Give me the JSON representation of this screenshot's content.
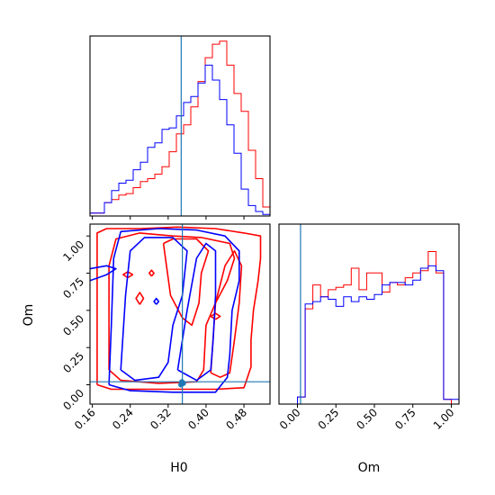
{
  "chart_data": {
    "type": "corner",
    "parameters": [
      "H0",
      "Om"
    ],
    "truths": {
      "H0": 0.35,
      "Om": 0.02
    },
    "colors": {
      "sample_a": "#ff0000",
      "sample_b": "#0000ff",
      "truth": "#1f77b4"
    },
    "panels": [
      {
        "id": "H0-marginal",
        "type": "histogram",
        "x_range": [
          0.16,
          0.535
        ],
        "bin_edges": [
          0.16,
          0.175,
          0.19,
          0.205,
          0.22,
          0.235,
          0.25,
          0.265,
          0.28,
          0.295,
          0.31,
          0.325,
          0.34,
          0.355,
          0.37,
          0.385,
          0.4,
          0.415,
          0.43,
          0.445,
          0.46,
          0.475,
          0.49,
          0.505,
          0.52,
          0.535
        ],
        "series": [
          {
            "name": "",
            "color": "#ff0000",
            "counts": [
              2,
              2,
              9,
              11,
              14,
              15,
              19,
              23,
              25,
              28,
              33,
              43,
              55,
              61,
              73,
              90,
              106,
              115,
              117,
              101,
              82,
              70,
              44,
              25,
              6
            ]
          },
          {
            "name": "",
            "color": "#0000ff",
            "counts": [
              2,
              2,
              9,
              17,
              22,
              24,
              31,
              36,
              46,
              49,
              58,
              59,
              67,
              76,
              80,
              89,
              101,
              91,
              78,
              61,
              42,
              18,
              7,
              3,
              1
            ]
          }
        ]
      },
      {
        "id": "Om-marginal",
        "type": "histogram",
        "x_range": [
          -0.12,
          1.05
        ],
        "x_ticks": [
          "0.00",
          "0.25",
          "0.50",
          "0.75",
          "1.00"
        ],
        "x_label": "Om",
        "bin_edges": [
          -0.1,
          -0.05,
          0.0,
          0.05,
          0.1,
          0.15,
          0.2,
          0.25,
          0.3,
          0.35,
          0.4,
          0.45,
          0.5,
          0.55,
          0.6,
          0.65,
          0.7,
          0.75,
          0.8,
          0.85,
          0.9,
          0.95,
          1.0,
          1.05
        ],
        "series": [
          {
            "name": "",
            "color": "#ff0000",
            "counts": [
              0,
              0,
              3,
              40,
              50,
              45,
              48,
              49,
              50,
              57,
              48,
              55,
              55,
              47,
              51,
              50,
              53,
              55,
              56,
              64,
              55,
              2,
              0
            ]
          },
          {
            "name": "",
            "color": "#0000ff",
            "counts": [
              0,
              0,
              3,
              42,
              43,
              45,
              44,
              41,
              45,
              43,
              45,
              44,
              46,
              50,
              51,
              51,
              50,
              52,
              57,
              58,
              56,
              2,
              2
            ]
          }
        ]
      },
      {
        "id": "H0-Om-joint",
        "type": "contour",
        "x_range": [
          0.155,
          0.535
        ],
        "y_range": [
          -0.13,
          1.08
        ],
        "x_ticks": [
          "0.16",
          "0.24",
          "0.32",
          "0.40",
          "0.48"
        ],
        "y_ticks": [
          "0.00",
          "0.25",
          "0.50",
          "0.75",
          "1.00"
        ],
        "x_label": "H0",
        "y_label": "Om",
        "contours": [
          {
            "color": "#ff0000",
            "level": "outer",
            "points": [
              [
                0.17,
                0.0
              ],
              [
                0.17,
                1.02
              ],
              [
                0.19,
                1.05
              ],
              [
                0.26,
                1.05
              ],
              [
                0.34,
                1.06
              ],
              [
                0.42,
                1.05
              ],
              [
                0.48,
                1.02
              ],
              [
                0.515,
                1.0
              ],
              [
                0.515,
                0.85
              ],
              [
                0.51,
                0.7
              ],
              [
                0.5,
                0.5
              ],
              [
                0.495,
                0.3
              ],
              [
                0.495,
                0.12
              ],
              [
                0.48,
                -0.02
              ],
              [
                0.42,
                -0.03
              ],
              [
                0.3,
                -0.03
              ],
              [
                0.2,
                -0.03
              ],
              [
                0.17,
                0.0
              ]
            ]
          },
          {
            "color": "#ff0000",
            "level": "inner",
            "points": [
              [
                0.195,
                0.1
              ],
              [
                0.195,
                0.8
              ],
              [
                0.21,
                0.98
              ],
              [
                0.26,
                1.02
              ],
              [
                0.33,
                1.0
              ],
              [
                0.39,
                0.99
              ],
              [
                0.45,
                0.95
              ],
              [
                0.46,
                0.85
              ],
              [
                0.445,
                0.7
              ],
              [
                0.42,
                0.55
              ],
              [
                0.4,
                0.4
              ],
              [
                0.395,
                0.1
              ],
              [
                0.38,
                0.02
              ],
              [
                0.3,
                0.01
              ],
              [
                0.22,
                0.03
              ],
              [
                0.195,
                0.1
              ]
            ]
          },
          {
            "color": "#ff0000",
            "level": "island-1",
            "points": [
              [
                0.31,
                0.95
              ],
              [
                0.325,
                0.6
              ],
              [
                0.35,
                0.45
              ],
              [
                0.37,
                0.4
              ],
              [
                0.385,
                0.55
              ],
              [
                0.39,
                0.75
              ],
              [
                0.405,
                0.9
              ],
              [
                0.38,
                0.98
              ],
              [
                0.33,
                0.98
              ],
              [
                0.31,
                0.95
              ]
            ]
          },
          {
            "color": "#ff0000",
            "level": "island-2",
            "points": [
              [
                0.41,
                0.08
              ],
              [
                0.42,
                0.55
              ],
              [
                0.44,
                0.8
              ],
              [
                0.46,
                0.9
              ],
              [
                0.475,
                0.8
              ],
              [
                0.47,
                0.55
              ],
              [
                0.46,
                0.3
              ],
              [
                0.45,
                0.08
              ],
              [
                0.43,
                0.05
              ],
              [
                0.41,
                0.08
              ]
            ]
          },
          {
            "color": "#ff0000",
            "level": "speck-1",
            "points": [
              [
                0.235,
                0.72
              ],
              [
                0.245,
                0.74
              ],
              [
                0.235,
                0.76
              ],
              [
                0.225,
                0.74
              ],
              [
                0.235,
                0.72
              ]
            ]
          },
          {
            "color": "#ff0000",
            "level": "speck-2",
            "points": [
              [
                0.285,
                0.73
              ],
              [
                0.29,
                0.75
              ],
              [
                0.285,
                0.77
              ],
              [
                0.28,
                0.75
              ],
              [
                0.285,
                0.73
              ]
            ]
          },
          {
            "color": "#ff0000",
            "level": "speck-3",
            "points": [
              [
                0.26,
                0.54
              ],
              [
                0.268,
                0.58
              ],
              [
                0.26,
                0.62
              ],
              [
                0.252,
                0.58
              ],
              [
                0.26,
                0.54
              ]
            ]
          },
          {
            "color": "#ff0000",
            "level": "speck-4",
            "points": [
              [
                0.42,
                0.44
              ],
              [
                0.43,
                0.46
              ],
              [
                0.42,
                0.48
              ],
              [
                0.41,
                0.46
              ],
              [
                0.42,
                0.44
              ]
            ]
          },
          {
            "color": "#0000ff",
            "level": "outer",
            "points": [
              [
                0.195,
                0.0
              ],
              [
                0.2,
                0.4
              ],
              [
                0.205,
                0.85
              ],
              [
                0.22,
                1.03
              ],
              [
                0.3,
                1.05
              ],
              [
                0.38,
                1.04
              ],
              [
                0.44,
                1.0
              ],
              [
                0.47,
                0.9
              ],
              [
                0.47,
                0.7
              ],
              [
                0.455,
                0.5
              ],
              [
                0.45,
                0.2
              ],
              [
                0.445,
                0.05
              ],
              [
                0.42,
                -0.05
              ],
              [
                0.33,
                -0.05
              ],
              [
                0.24,
                -0.04
              ],
              [
                0.195,
                0.0
              ]
            ]
          },
          {
            "color": "#0000ff",
            "level": "inner",
            "points": [
              [
                0.22,
                0.1
              ],
              [
                0.23,
                0.6
              ],
              [
                0.24,
                0.9
              ],
              [
                0.27,
                0.99
              ],
              [
                0.33,
                0.99
              ],
              [
                0.36,
                0.9
              ],
              [
                0.35,
                0.6
              ],
              [
                0.33,
                0.4
              ],
              [
                0.32,
                0.15
              ],
              [
                0.3,
                0.05
              ],
              [
                0.25,
                0.03
              ],
              [
                0.22,
                0.1
              ]
            ]
          },
          {
            "color": "#0000ff",
            "level": "inner-right",
            "points": [
              [
                0.34,
                0.1
              ],
              [
                0.36,
                0.5
              ],
              [
                0.38,
                0.85
              ],
              [
                0.4,
                0.95
              ],
              [
                0.42,
                0.9
              ],
              [
                0.42,
                0.6
              ],
              [
                0.415,
                0.3
              ],
              [
                0.41,
                0.1
              ],
              [
                0.38,
                0.03
              ],
              [
                0.34,
                0.1
              ]
            ]
          },
          {
            "color": "#0000ff",
            "level": "wing",
            "points": [
              [
                0.155,
                0.7
              ],
              [
                0.19,
                0.74
              ],
              [
                0.21,
                0.78
              ],
              [
                0.19,
                0.8
              ],
              [
                0.155,
                0.78
              ]
            ]
          },
          {
            "color": "#0000ff",
            "level": "speck-1",
            "points": [
              [
                0.295,
                0.54
              ],
              [
                0.3,
                0.56
              ],
              [
                0.295,
                0.58
              ],
              [
                0.29,
                0.56
              ],
              [
                0.295,
                0.54
              ]
            ]
          }
        ],
        "points": [
          {
            "x": 0.347,
            "y": 0.0,
            "color": "#1f77b4"
          },
          {
            "x": 0.352,
            "y": 0.01,
            "color": "#1f77b4"
          },
          {
            "x": 0.349,
            "y": 0.02,
            "color": "#1f77b4"
          }
        ]
      }
    ]
  }
}
